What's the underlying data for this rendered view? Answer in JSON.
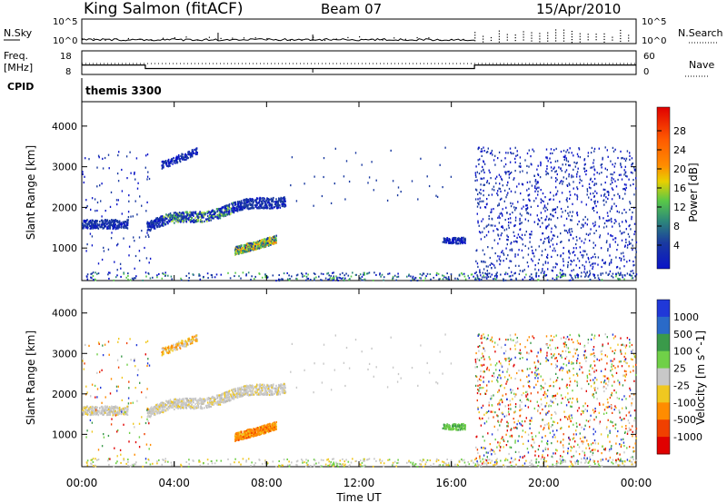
{
  "header": {
    "station": "King Salmon (fitACF)",
    "beam": "Beam 07",
    "date": "15/Apr/2010"
  },
  "top_labels": {
    "nsky": "N.Sky",
    "nsearch": "N.Search",
    "freq_line1": "Freq.",
    "freq_line2": "[MHz]",
    "nave": "Nave",
    "cpid": "CPID",
    "cpid_value": "themis 3300"
  },
  "nsky_panel": {
    "left_ticks": [
      "10^5",
      "10^0"
    ],
    "right_ticks": [
      "10^5",
      "10^0"
    ]
  },
  "freq_panel": {
    "left_ticks": [
      "18",
      "8"
    ],
    "right_ticks": [
      "60",
      "0"
    ],
    "freq_level_mhz": [
      {
        "from_hour": 0.0,
        "to_hour": 2.75,
        "freq": 12
      },
      {
        "from_hour": 2.75,
        "to_hour": 17.0,
        "freq": 10.5
      },
      {
        "from_hour": 17.0,
        "to_hour": 24.0,
        "freq": 12
      }
    ]
  },
  "chart_data": [
    {
      "type": "heatmap",
      "panel": "power",
      "xlabel": "",
      "ylabel": "Slant Range [km]",
      "xlim_hours": [
        0,
        24
      ],
      "ylim": [
        200,
        4600
      ],
      "yticks": [
        "1000",
        "2000",
        "3000",
        "4000"
      ],
      "colorbar_label": "Power [dB]",
      "colorbar_ticks": [
        "28",
        "24",
        "20",
        "16",
        "12",
        "8",
        "4"
      ],
      "colorbar_colors": [
        "#e00000",
        "#ff2a00",
        "#ff5a00",
        "#ff8c00",
        "#ffb000",
        "#e8d000",
        "#b0e040",
        "#58c848",
        "#3a9a6a",
        "#2e8a78",
        "#1a3aa0",
        "#0a14c8"
      ],
      "echo_regions": [
        {
          "t0": 0.0,
          "t1": 2.0,
          "r0": 1500,
          "r1": 1700,
          "level": "medium"
        },
        {
          "t0": 2.8,
          "t1": 8.8,
          "r0": 1500,
          "r1": 2300,
          "level": "medium-high"
        },
        {
          "t0": 6.6,
          "t1": 8.4,
          "r0": 850,
          "r1": 1300,
          "level": "high"
        },
        {
          "t0": 3.4,
          "t1": 5.0,
          "r0": 3000,
          "r1": 3500,
          "level": "low"
        },
        {
          "t0": 15.6,
          "t1": 16.6,
          "r0": 1150,
          "r1": 1250,
          "level": "low"
        },
        {
          "t0": 17.0,
          "t1": 24.0,
          "r0": 300,
          "r1": 3500,
          "level": "scatter"
        }
      ]
    },
    {
      "type": "heatmap",
      "panel": "velocity",
      "xlabel": "Time UT",
      "ylabel": "Slant Range [km]",
      "xlim_hours": [
        0,
        24
      ],
      "ylim": [
        200,
        4600
      ],
      "xticks": [
        "00:00",
        "04:00",
        "08:00",
        "12:00",
        "16:00",
        "20:00",
        "00:00"
      ],
      "yticks": [
        "1000",
        "2000",
        "3000",
        "4000"
      ],
      "colorbar_label": "Velocity [m s^-1]",
      "colorbar_ticks": [
        "1000",
        "500",
        "100",
        "25",
        "-25",
        "-100",
        "-500",
        "-1000"
      ],
      "colorbar_colors": [
        "#2038d8",
        "#2a6ac8",
        "#3a9a4a",
        "#70d048",
        "#c8c8c8",
        "#f0c820",
        "#ff8c00",
        "#f04000",
        "#e00000"
      ],
      "echo_regions": [
        {
          "t0": 0.0,
          "t1": 8.8,
          "r0": 1500,
          "r1": 2300,
          "level": "near-zero"
        },
        {
          "t0": 6.6,
          "t1": 8.4,
          "r0": 850,
          "r1": 1300,
          "level": "negative"
        },
        {
          "t0": 15.6,
          "t1": 16.6,
          "r0": 1150,
          "r1": 1250,
          "level": "positive-small"
        },
        {
          "t0": 17.0,
          "t1": 24.0,
          "r0": 300,
          "r1": 3500,
          "level": "scatter"
        }
      ]
    }
  ]
}
